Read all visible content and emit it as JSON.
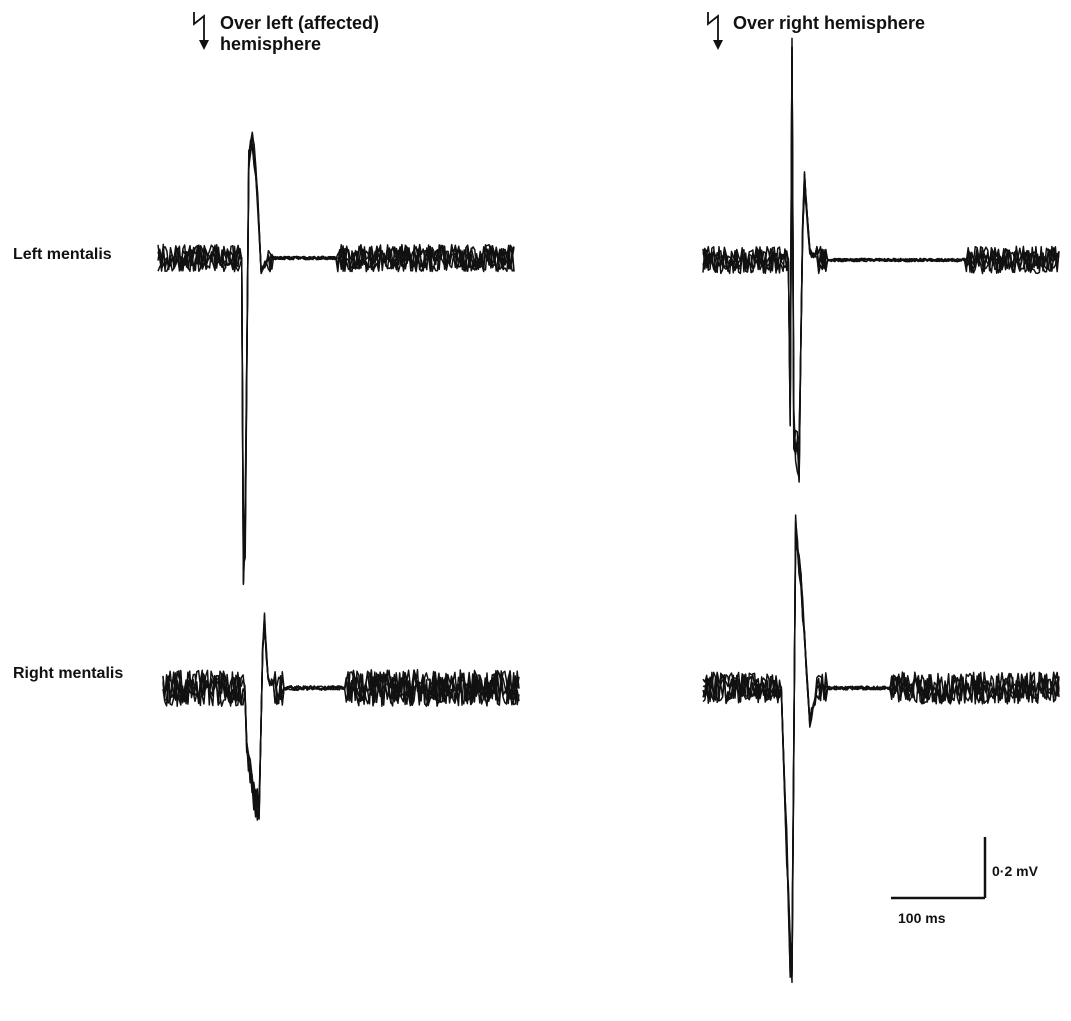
{
  "figure": {
    "column_titles": {
      "left": [
        "Over left (affected)",
        "hemisphere"
      ],
      "right": [
        "Over right hemisphere"
      ]
    },
    "row_labels": [
      "Left mentalis",
      "Right mentalis"
    ],
    "stimulus_icon": "lightning-arrow-icon",
    "scale_bar": {
      "voltage_label": "0·2 mV",
      "time_label": "100 ms",
      "voltage_mV": 0.2,
      "time_ms": 100
    }
  },
  "chart_data": [
    {
      "type": "line",
      "panel": "left-stim / left-mentalis",
      "x_unit": "ms",
      "y_unit": "mV",
      "xlim": [
        0,
        400
      ],
      "ylim": [
        -0.85,
        0.3
      ],
      "noise_mV": 0.03,
      "traces": 5,
      "events": [
        {
          "t": 95,
          "v": -0.75
        },
        {
          "t": 98,
          "v": -0.6
        },
        {
          "t": 102,
          "v": 0.22
        },
        {
          "t": 106,
          "v": 0.26
        },
        {
          "t": 110,
          "v": 0.2
        },
        {
          "t": 116,
          "v": -0.03
        }
      ],
      "quiet": [
        [
          130,
          200
        ]
      ]
    },
    {
      "type": "line",
      "panel": "left-stim / right-mentalis",
      "x_unit": "ms",
      "y_unit": "mV",
      "xlim": [
        0,
        400
      ],
      "ylim": [
        -0.3,
        0.2
      ],
      "noise_mV": 0.04,
      "traces": 5,
      "events": [
        {
          "t": 93,
          "v": -0.12
        },
        {
          "t": 103,
          "v": -0.25
        },
        {
          "t": 108,
          "v": -0.28
        },
        {
          "t": 113,
          "v": 0.18
        },
        {
          "t": 118,
          "v": 0.02
        }
      ],
      "quiet": [
        [
          135,
          205
        ]
      ]
    },
    {
      "type": "line",
      "panel": "right-stim / left-mentalis",
      "x_unit": "ms",
      "y_unit": "mV",
      "xlim": [
        0,
        400
      ],
      "ylim": [
        -0.45,
        0.45
      ],
      "noise_mV": 0.03,
      "traces": 5,
      "events": [
        {
          "t": 98,
          "v": -0.35
        },
        {
          "t": 100,
          "v": 0.46
        },
        {
          "t": 102,
          "v": -0.38
        },
        {
          "t": 108,
          "v": -0.45
        },
        {
          "t": 113,
          "v": 0.2
        },
        {
          "t": 120,
          "v": 0.02
        }
      ],
      "quiet": [
        [
          140,
          295
        ]
      ]
    },
    {
      "type": "line",
      "panel": "right-stim / right-mentalis",
      "x_unit": "ms",
      "y_unit": "mV",
      "xlim": [
        0,
        400
      ],
      "ylim": [
        -0.65,
        0.38
      ],
      "noise_mV": 0.035,
      "traces": 5,
      "events": [
        {
          "t": 90,
          "v": -0.12
        },
        {
          "t": 97,
          "v": -0.55
        },
        {
          "t": 100,
          "v": -0.62
        },
        {
          "t": 104,
          "v": 0.35
        },
        {
          "t": 110,
          "v": 0.24
        },
        {
          "t": 120,
          "v": -0.08
        }
      ],
      "quiet": [
        [
          140,
          210
        ]
      ]
    }
  ]
}
